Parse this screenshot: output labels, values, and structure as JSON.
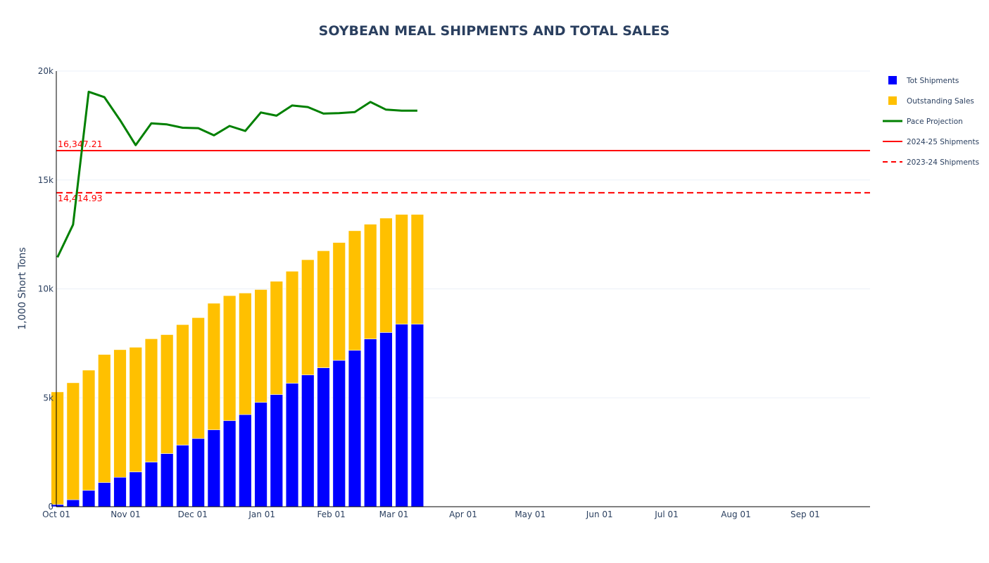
{
  "chart_data": {
    "type": "bar",
    "title": "SOYBEAN MEAL SHIPMENTS AND TOTAL SALES",
    "xlabel": "",
    "ylabel": "1,000 Short Tons",
    "ylim": [
      0,
      20000
    ],
    "y_ticks": [
      0,
      5000,
      10000,
      15000,
      20000
    ],
    "y_tick_labels": [
      "0",
      "5k",
      "10k",
      "15k",
      "20k"
    ],
    "x_ticks": [
      "Oct 01",
      "Nov 01",
      "Dec 01",
      "Jan 01",
      "Feb 01",
      "Mar 01",
      "Apr 01",
      "May 01",
      "Jun 01",
      "Jul 01",
      "Aug 01",
      "Sep 01"
    ],
    "x_tick_days": [
      0,
      31,
      61,
      92,
      123,
      151,
      182,
      212,
      243,
      273,
      304,
      335
    ],
    "x_range_days": [
      0,
      364
    ],
    "bar_mode": "stack",
    "week_days": [
      0,
      7,
      14,
      21,
      28,
      35,
      42,
      49,
      56,
      63,
      70,
      77,
      84,
      91,
      98,
      105,
      112,
      119,
      126,
      133,
      140,
      147,
      154,
      161
    ],
    "series": [
      {
        "name": "Tot Shipments",
        "kind": "bar",
        "color": "#0000ff",
        "values": [
          100,
          320,
          750,
          1110,
          1350,
          1600,
          2050,
          2440,
          2830,
          3130,
          3530,
          3950,
          4230,
          4790,
          5150,
          5670,
          6050,
          6380,
          6720,
          7180,
          7700,
          8000,
          8380,
          8380
        ]
      },
      {
        "name": "Outstanding Sales",
        "kind": "bar",
        "color": "#ffc000",
        "values": [
          5170,
          5370,
          5520,
          5880,
          5860,
          5720,
          5660,
          5460,
          5530,
          5550,
          5810,
          5740,
          5580,
          5180,
          5200,
          5140,
          5290,
          5370,
          5410,
          5490,
          5270,
          5250,
          5040,
          5040
        ]
      },
      {
        "name": "Pace Projection",
        "kind": "line",
        "color": "#008000",
        "values": [
          11450,
          12950,
          19050,
          18800,
          17750,
          16600,
          17600,
          17550,
          17400,
          17380,
          17050,
          17480,
          17250,
          18100,
          17950,
          18420,
          18350,
          18050,
          18070,
          18120,
          18580,
          18230,
          18180,
          18180
        ]
      },
      {
        "name": "2024-25 Shipments",
        "kind": "hline",
        "color": "#ff0000",
        "dash": "solid",
        "value": 16347.21,
        "label": "16,347.21"
      },
      {
        "name": "2023-24 Shipments",
        "kind": "hline",
        "color": "#ff0000",
        "dash": "dash",
        "value": 14414.93,
        "label": "14,414.93"
      }
    ],
    "legend_position": "top-right",
    "grid": true
  }
}
